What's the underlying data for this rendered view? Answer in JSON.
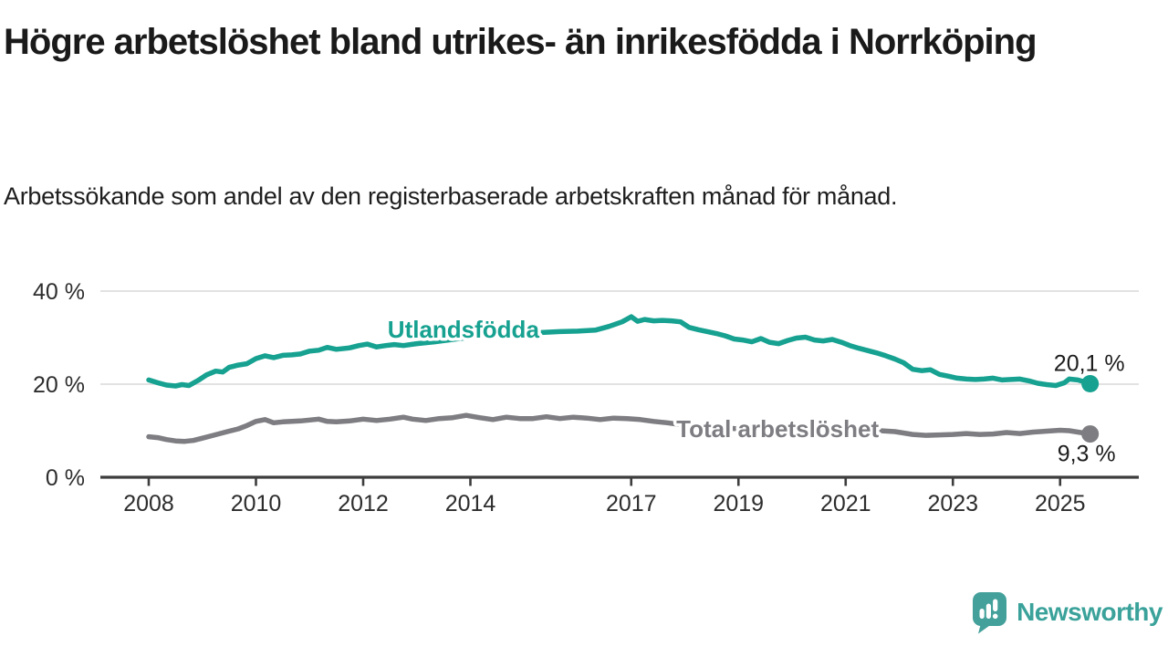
{
  "header": {
    "title": "Högre arbetslöshet bland utrikes- än inrikesfödda i Norrköping",
    "subtitle": "Arbetssökande som andel av den registerbaserade arbetskraften månad för månad."
  },
  "chart_data": {
    "type": "line",
    "unit": "%",
    "grid": true,
    "legend_position": "inline-labels",
    "x_axis": {
      "range_years": [
        2007.1,
        2026.4
      ],
      "ticks": [
        {
          "value": 2008,
          "label": "2008"
        },
        {
          "value": 2010,
          "label": "2010"
        },
        {
          "value": 2012,
          "label": "2012"
        },
        {
          "value": 2014,
          "label": "2014"
        },
        {
          "value": 2017,
          "label": "2017"
        },
        {
          "value": 2019,
          "label": "2019"
        },
        {
          "value": 2021,
          "label": "2021"
        },
        {
          "value": 2023,
          "label": "2023"
        },
        {
          "value": 2025,
          "label": "2025"
        }
      ]
    },
    "y_axis": {
      "range": [
        0,
        44
      ],
      "ticks": [
        {
          "value": 0,
          "label": "0 %"
        },
        {
          "value": 20,
          "label": "20 %"
        },
        {
          "value": 40,
          "label": "40 %"
        }
      ],
      "gridlines": [
        20,
        40
      ]
    },
    "series": [
      {
        "name": "Utlandsfödda",
        "color": "#16a190",
        "end_value": 20.1,
        "end_label": "20,1 %",
        "label_anchor": {
          "year": 2013.87,
          "value": 31.8
        },
        "points": [
          [
            2008.0,
            20.9
          ],
          [
            2008.17,
            20.3
          ],
          [
            2008.33,
            19.8
          ],
          [
            2008.5,
            19.6
          ],
          [
            2008.62,
            19.9
          ],
          [
            2008.75,
            19.7
          ],
          [
            2008.92,
            20.8
          ],
          [
            2009.08,
            22.0
          ],
          [
            2009.25,
            22.8
          ],
          [
            2009.38,
            22.6
          ],
          [
            2009.5,
            23.6
          ],
          [
            2009.67,
            24.1
          ],
          [
            2009.83,
            24.4
          ],
          [
            2010.0,
            25.5
          ],
          [
            2010.17,
            26.1
          ],
          [
            2010.33,
            25.7
          ],
          [
            2010.5,
            26.2
          ],
          [
            2010.67,
            26.3
          ],
          [
            2010.83,
            26.5
          ],
          [
            2011.0,
            27.1
          ],
          [
            2011.17,
            27.3
          ],
          [
            2011.33,
            27.9
          ],
          [
            2011.5,
            27.5
          ],
          [
            2011.75,
            27.8
          ],
          [
            2011.92,
            28.3
          ],
          [
            2012.08,
            28.6
          ],
          [
            2012.25,
            28.0
          ],
          [
            2012.42,
            28.3
          ],
          [
            2012.58,
            28.5
          ],
          [
            2012.75,
            28.3
          ],
          [
            2013.0,
            28.7
          ],
          [
            2013.33,
            29.1
          ],
          [
            2013.67,
            29.6
          ],
          [
            2014.0,
            30.1
          ],
          [
            2014.33,
            30.4
          ],
          [
            2014.67,
            30.7
          ],
          [
            2015.0,
            30.9
          ],
          [
            2015.33,
            31.1
          ],
          [
            2015.67,
            31.3
          ],
          [
            2016.0,
            31.4
          ],
          [
            2016.33,
            31.6
          ],
          [
            2016.58,
            32.4
          ],
          [
            2016.83,
            33.4
          ],
          [
            2017.0,
            34.5
          ],
          [
            2017.12,
            33.5
          ],
          [
            2017.25,
            33.9
          ],
          [
            2017.42,
            33.6
          ],
          [
            2017.58,
            33.7
          ],
          [
            2017.75,
            33.6
          ],
          [
            2017.92,
            33.4
          ],
          [
            2018.08,
            32.2
          ],
          [
            2018.25,
            31.7
          ],
          [
            2018.42,
            31.3
          ],
          [
            2018.58,
            30.9
          ],
          [
            2018.75,
            30.4
          ],
          [
            2018.92,
            29.7
          ],
          [
            2019.08,
            29.5
          ],
          [
            2019.25,
            29.1
          ],
          [
            2019.42,
            29.8
          ],
          [
            2019.58,
            29.0
          ],
          [
            2019.75,
            28.7
          ],
          [
            2019.92,
            29.4
          ],
          [
            2020.08,
            29.9
          ],
          [
            2020.25,
            30.1
          ],
          [
            2020.42,
            29.5
          ],
          [
            2020.58,
            29.3
          ],
          [
            2020.75,
            29.6
          ],
          [
            2020.92,
            29.0
          ],
          [
            2021.08,
            28.3
          ],
          [
            2021.25,
            27.7
          ],
          [
            2021.42,
            27.2
          ],
          [
            2021.58,
            26.7
          ],
          [
            2021.75,
            26.1
          ],
          [
            2021.92,
            25.4
          ],
          [
            2022.08,
            24.6
          ],
          [
            2022.25,
            23.2
          ],
          [
            2022.42,
            22.9
          ],
          [
            2022.58,
            23.1
          ],
          [
            2022.75,
            22.1
          ],
          [
            2022.92,
            21.7
          ],
          [
            2023.08,
            21.3
          ],
          [
            2023.25,
            21.1
          ],
          [
            2023.42,
            21.0
          ],
          [
            2023.58,
            21.1
          ],
          [
            2023.75,
            21.3
          ],
          [
            2023.92,
            20.9
          ],
          [
            2024.08,
            21.0
          ],
          [
            2024.25,
            21.1
          ],
          [
            2024.42,
            20.7
          ],
          [
            2024.58,
            20.2
          ],
          [
            2024.75,
            19.9
          ],
          [
            2024.92,
            19.7
          ],
          [
            2025.08,
            20.3
          ],
          [
            2025.17,
            21.1
          ],
          [
            2025.33,
            20.9
          ],
          [
            2025.42,
            20.6
          ],
          [
            2025.56,
            20.1
          ]
        ]
      },
      {
        "name": "Total arbetslöshet",
        "color": "#7d7d82",
        "end_value": 9.3,
        "end_label": "9,3 %",
        "label_anchor": {
          "year": 2019.73,
          "value": 10.4
        },
        "points": [
          [
            2008.0,
            8.7
          ],
          [
            2008.17,
            8.5
          ],
          [
            2008.33,
            8.1
          ],
          [
            2008.5,
            7.8
          ],
          [
            2008.67,
            7.7
          ],
          [
            2008.83,
            7.9
          ],
          [
            2009.0,
            8.4
          ],
          [
            2009.17,
            8.9
          ],
          [
            2009.33,
            9.4
          ],
          [
            2009.5,
            9.9
          ],
          [
            2009.67,
            10.4
          ],
          [
            2009.83,
            11.1
          ],
          [
            2010.0,
            12.0
          ],
          [
            2010.17,
            12.4
          ],
          [
            2010.33,
            11.7
          ],
          [
            2010.5,
            11.9
          ],
          [
            2010.67,
            12.0
          ],
          [
            2010.83,
            12.1
          ],
          [
            2011.0,
            12.3
          ],
          [
            2011.17,
            12.5
          ],
          [
            2011.33,
            12.0
          ],
          [
            2011.5,
            11.9
          ],
          [
            2011.75,
            12.1
          ],
          [
            2012.0,
            12.5
          ],
          [
            2012.25,
            12.2
          ],
          [
            2012.5,
            12.5
          ],
          [
            2012.75,
            12.9
          ],
          [
            2012.92,
            12.5
          ],
          [
            2013.17,
            12.2
          ],
          [
            2013.42,
            12.6
          ],
          [
            2013.67,
            12.8
          ],
          [
            2013.92,
            13.3
          ],
          [
            2014.17,
            12.8
          ],
          [
            2014.42,
            12.4
          ],
          [
            2014.67,
            12.9
          ],
          [
            2014.92,
            12.6
          ],
          [
            2015.17,
            12.6
          ],
          [
            2015.42,
            13.0
          ],
          [
            2015.67,
            12.6
          ],
          [
            2015.92,
            12.9
          ],
          [
            2016.17,
            12.7
          ],
          [
            2016.42,
            12.4
          ],
          [
            2016.67,
            12.7
          ],
          [
            2016.92,
            12.6
          ],
          [
            2017.17,
            12.4
          ],
          [
            2017.42,
            12.0
          ],
          [
            2017.67,
            11.7
          ],
          [
            2018.0,
            11.2
          ],
          [
            2018.5,
            10.8
          ],
          [
            2019.0,
            10.4
          ],
          [
            2019.5,
            10.2
          ],
          [
            2020.0,
            10.6
          ],
          [
            2020.5,
            10.7
          ],
          [
            2021.0,
            10.4
          ],
          [
            2021.5,
            10.1
          ],
          [
            2021.92,
            9.8
          ],
          [
            2022.25,
            9.2
          ],
          [
            2022.5,
            9.0
          ],
          [
            2022.75,
            9.1
          ],
          [
            2023.0,
            9.2
          ],
          [
            2023.25,
            9.4
          ],
          [
            2023.5,
            9.2
          ],
          [
            2023.75,
            9.3
          ],
          [
            2024.0,
            9.6
          ],
          [
            2024.25,
            9.4
          ],
          [
            2024.5,
            9.7
          ],
          [
            2024.75,
            9.9
          ],
          [
            2025.0,
            10.1
          ],
          [
            2025.17,
            10.0
          ],
          [
            2025.33,
            9.7
          ],
          [
            2025.56,
            9.3
          ]
        ]
      }
    ]
  },
  "branding": {
    "wordmark": "Newsworthy",
    "logo_icon": "speech-bubble-bar-chart-icon",
    "logo_color": "#43a09a",
    "wordmark_color": "#3aa29a"
  },
  "colors": {
    "background": "#ffffff",
    "title_text": "#1a1a1a",
    "subtitle_text": "#1e1e1e",
    "axis_line": "#3d3d3d",
    "axis_text": "#2d2d2d",
    "gridline": "#d8d8d8",
    "end_label_text": "#1d1d1d",
    "halo": "#ffffff"
  }
}
